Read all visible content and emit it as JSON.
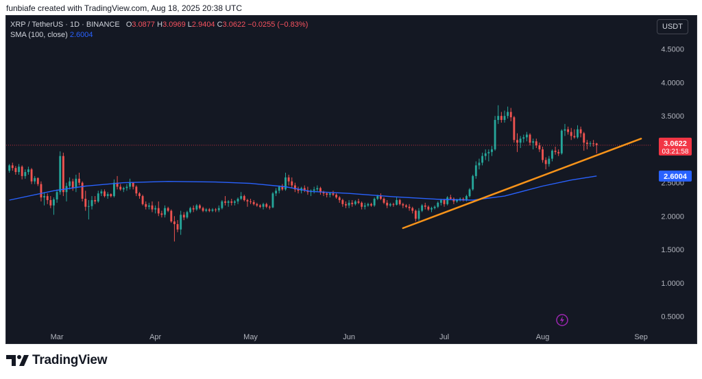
{
  "header": {
    "caption": "funbiafe created with TradingView.com, Aug 18, 2025 20:38 UTC"
  },
  "legend": {
    "symbol": "XRP / TetherUS · 1D · BINANCE",
    "o_label": "O",
    "o_value": "3.0877",
    "h_label": "H",
    "h_value": "3.0969",
    "l_label": "L",
    "l_value": "2.9404",
    "c_label": "C",
    "c_value": "3.0622",
    "change": "−0.0255 (−0.83%)",
    "sma_label": "SMA (100, close)",
    "sma_value": "2.6004"
  },
  "toolbar": {
    "currency_button": "USDT"
  },
  "footer": {
    "brand": "TradingView"
  },
  "colors": {
    "background": "#141823",
    "up": "#26a69a",
    "down": "#ef5350",
    "sma": "#2962ff",
    "trendline": "#f7931a",
    "price_tag": "#f23645"
  },
  "chart_data": {
    "type": "candlestick",
    "series_symbol": "XRP / TetherUS",
    "interval": "1D",
    "exchange": "BINANCE",
    "ylim": [
      0.3,
      5.0
    ],
    "y_ticks": [
      "4.5000",
      "4.0000",
      "3.5000",
      "3.0000",
      "2.5000",
      "2.0000",
      "1.5000",
      "1.0000",
      "0.5000"
    ],
    "x_ticks": [
      "Mar",
      "Apr",
      "May",
      "Jun",
      "Jul",
      "Aug",
      "Sep"
    ],
    "x_tick_dates": [
      "2025-03-01",
      "2025-04-01",
      "2025-05-01",
      "2025-06-01",
      "2025-07-01",
      "2025-08-01",
      "2025-09-01"
    ],
    "x_range": [
      "2025-02-13",
      "2025-09-04"
    ],
    "current_price": "3.0622",
    "countdown": "03:21:58",
    "sma_label_value": "2.6004",
    "candles": [
      [
        "2025-02-14",
        2.68,
        2.78,
        2.65,
        2.76
      ],
      [
        "2025-02-15",
        2.76,
        2.8,
        2.68,
        2.72
      ],
      [
        "2025-02-16",
        2.72,
        2.75,
        2.62,
        2.66
      ],
      [
        "2025-02-17",
        2.66,
        2.78,
        2.62,
        2.74
      ],
      [
        "2025-02-18",
        2.74,
        2.76,
        2.55,
        2.6
      ],
      [
        "2025-02-19",
        2.6,
        2.7,
        2.56,
        2.66
      ],
      [
        "2025-02-20",
        2.66,
        2.74,
        2.62,
        2.7
      ],
      [
        "2025-02-21",
        2.7,
        2.72,
        2.48,
        2.52
      ],
      [
        "2025-02-22",
        2.52,
        2.6,
        2.48,
        2.57
      ],
      [
        "2025-02-23",
        2.57,
        2.58,
        2.45,
        2.48
      ],
      [
        "2025-02-24",
        2.48,
        2.52,
        2.22,
        2.28
      ],
      [
        "2025-02-25",
        2.28,
        2.36,
        2.16,
        2.3
      ],
      [
        "2025-02-26",
        2.3,
        2.34,
        2.18,
        2.24
      ],
      [
        "2025-02-27",
        2.24,
        2.3,
        2.12,
        2.16
      ],
      [
        "2025-02-28",
        2.16,
        2.28,
        2.02,
        2.25
      ],
      [
        "2025-03-01",
        2.25,
        2.4,
        2.2,
        2.36
      ],
      [
        "2025-03-02",
        2.36,
        2.97,
        2.32,
        2.9
      ],
      [
        "2025-03-03",
        2.9,
        2.95,
        2.3,
        2.36
      ],
      [
        "2025-03-04",
        2.36,
        2.5,
        2.22,
        2.45
      ],
      [
        "2025-03-05",
        2.45,
        2.58,
        2.4,
        2.52
      ],
      [
        "2025-03-06",
        2.52,
        2.56,
        2.38,
        2.42
      ],
      [
        "2025-03-07",
        2.42,
        2.62,
        2.36,
        2.56
      ],
      [
        "2025-03-08",
        2.56,
        2.65,
        2.46,
        2.5
      ],
      [
        "2025-03-09",
        2.5,
        2.52,
        2.22,
        2.26
      ],
      [
        "2025-03-10",
        2.26,
        2.38,
        2.08,
        2.14
      ],
      [
        "2025-03-11",
        2.14,
        2.24,
        1.95,
        2.15
      ],
      [
        "2025-03-12",
        2.15,
        2.3,
        2.1,
        2.24
      ],
      [
        "2025-03-13",
        2.24,
        2.3,
        2.18,
        2.22
      ],
      [
        "2025-03-14",
        2.22,
        2.38,
        2.2,
        2.34
      ],
      [
        "2025-03-15",
        2.34,
        2.4,
        2.3,
        2.37
      ],
      [
        "2025-03-16",
        2.37,
        2.4,
        2.28,
        2.3
      ],
      [
        "2025-03-17",
        2.3,
        2.36,
        2.26,
        2.33
      ],
      [
        "2025-03-18",
        2.33,
        2.34,
        2.28,
        2.3
      ],
      [
        "2025-03-19",
        2.3,
        2.55,
        2.28,
        2.5
      ],
      [
        "2025-03-20",
        2.5,
        2.6,
        2.4,
        2.44
      ],
      [
        "2025-03-21",
        2.44,
        2.48,
        2.38,
        2.4
      ],
      [
        "2025-03-22",
        2.4,
        2.44,
        2.36,
        2.42
      ],
      [
        "2025-03-23",
        2.42,
        2.48,
        2.38,
        2.44
      ],
      [
        "2025-03-24",
        2.44,
        2.56,
        2.4,
        2.5
      ],
      [
        "2025-03-25",
        2.5,
        2.5,
        2.4,
        2.44
      ],
      [
        "2025-03-26",
        2.44,
        2.46,
        2.3,
        2.34
      ],
      [
        "2025-03-27",
        2.34,
        2.36,
        2.26,
        2.3
      ],
      [
        "2025-03-28",
        2.3,
        2.32,
        2.16,
        2.18
      ],
      [
        "2025-03-29",
        2.18,
        2.22,
        2.1,
        2.14
      ],
      [
        "2025-03-30",
        2.14,
        2.2,
        2.1,
        2.16
      ],
      [
        "2025-03-31",
        2.16,
        2.22,
        2.06,
        2.1
      ],
      [
        "2025-04-01",
        2.1,
        2.16,
        2.04,
        2.12
      ],
      [
        "2025-04-02",
        2.12,
        2.22,
        2.0,
        2.04
      ],
      [
        "2025-04-03",
        2.04,
        2.08,
        1.98,
        2.02
      ],
      [
        "2025-04-04",
        2.02,
        2.16,
        1.98,
        2.12
      ],
      [
        "2025-04-05",
        2.12,
        2.14,
        2.06,
        2.08
      ],
      [
        "2025-04-06",
        2.08,
        2.1,
        1.9,
        1.92
      ],
      [
        "2025-04-07",
        1.92,
        2.0,
        1.62,
        1.88
      ],
      [
        "2025-04-08",
        1.88,
        1.94,
        1.76,
        1.8
      ],
      [
        "2025-04-09",
        1.8,
        2.08,
        1.72,
        2.02
      ],
      [
        "2025-04-10",
        2.02,
        2.06,
        1.94,
        1.98
      ],
      [
        "2025-04-11",
        1.98,
        2.08,
        1.96,
        2.06
      ],
      [
        "2025-04-12",
        2.06,
        2.14,
        2.04,
        2.12
      ],
      [
        "2025-04-13",
        2.12,
        2.16,
        2.06,
        2.1
      ],
      [
        "2025-04-14",
        2.1,
        2.18,
        2.08,
        2.16
      ],
      [
        "2025-04-15",
        2.16,
        2.18,
        2.1,
        2.12
      ],
      [
        "2025-04-16",
        2.12,
        2.14,
        2.06,
        2.08
      ],
      [
        "2025-04-17",
        2.08,
        2.12,
        2.06,
        2.1
      ],
      [
        "2025-04-18",
        2.1,
        2.12,
        2.06,
        2.08
      ],
      [
        "2025-04-19",
        2.08,
        2.12,
        2.06,
        2.1
      ],
      [
        "2025-04-20",
        2.1,
        2.12,
        2.06,
        2.09
      ],
      [
        "2025-04-21",
        2.09,
        2.16,
        2.06,
        2.12
      ],
      [
        "2025-04-22",
        2.12,
        2.24,
        2.1,
        2.22
      ],
      [
        "2025-04-23",
        2.22,
        2.3,
        2.16,
        2.2
      ],
      [
        "2025-04-24",
        2.2,
        2.24,
        2.14,
        2.22
      ],
      [
        "2025-04-25",
        2.22,
        2.26,
        2.16,
        2.2
      ],
      [
        "2025-04-26",
        2.2,
        2.24,
        2.16,
        2.22
      ],
      [
        "2025-04-27",
        2.22,
        2.28,
        2.18,
        2.26
      ],
      [
        "2025-04-28",
        2.26,
        2.36,
        2.24,
        2.3
      ],
      [
        "2025-04-29",
        2.3,
        2.32,
        2.22,
        2.24
      ],
      [
        "2025-04-30",
        2.24,
        2.26,
        2.14,
        2.22
      ],
      [
        "2025-05-01",
        2.22,
        2.26,
        2.18,
        2.21
      ],
      [
        "2025-05-02",
        2.21,
        2.24,
        2.16,
        2.18
      ],
      [
        "2025-05-03",
        2.18,
        2.2,
        2.14,
        2.16
      ],
      [
        "2025-05-04",
        2.16,
        2.18,
        2.12,
        2.14
      ],
      [
        "2025-05-05",
        2.14,
        2.2,
        2.1,
        2.18
      ],
      [
        "2025-05-06",
        2.18,
        2.2,
        2.12,
        2.14
      ],
      [
        "2025-05-07",
        2.14,
        2.16,
        2.1,
        2.13
      ],
      [
        "2025-05-08",
        2.13,
        2.36,
        2.12,
        2.34
      ],
      [
        "2025-05-09",
        2.34,
        2.42,
        2.3,
        2.38
      ],
      [
        "2025-05-10",
        2.38,
        2.46,
        2.34,
        2.44
      ],
      [
        "2025-05-11",
        2.44,
        2.48,
        2.38,
        2.4
      ],
      [
        "2025-05-12",
        2.4,
        2.65,
        2.38,
        2.58
      ],
      [
        "2025-05-13",
        2.58,
        2.62,
        2.46,
        2.52
      ],
      [
        "2025-05-14",
        2.52,
        2.58,
        2.42,
        2.46
      ],
      [
        "2025-05-15",
        2.46,
        2.5,
        2.36,
        2.4
      ],
      [
        "2025-05-16",
        2.4,
        2.44,
        2.34,
        2.38
      ],
      [
        "2025-05-17",
        2.38,
        2.44,
        2.34,
        2.42
      ],
      [
        "2025-05-18",
        2.42,
        2.46,
        2.36,
        2.38
      ],
      [
        "2025-05-19",
        2.38,
        2.44,
        2.32,
        2.36
      ],
      [
        "2025-05-20",
        2.36,
        2.4,
        2.3,
        2.38
      ],
      [
        "2025-05-21",
        2.38,
        2.44,
        2.34,
        2.4
      ],
      [
        "2025-05-22",
        2.4,
        2.46,
        2.36,
        2.42
      ],
      [
        "2025-05-23",
        2.42,
        2.44,
        2.32,
        2.36
      ],
      [
        "2025-05-24",
        2.36,
        2.38,
        2.3,
        2.34
      ],
      [
        "2025-05-25",
        2.34,
        2.36,
        2.28,
        2.32
      ],
      [
        "2025-05-26",
        2.32,
        2.36,
        2.28,
        2.34
      ],
      [
        "2025-05-27",
        2.34,
        2.38,
        2.3,
        2.32
      ],
      [
        "2025-05-28",
        2.32,
        2.34,
        2.26,
        2.28
      ],
      [
        "2025-05-29",
        2.28,
        2.3,
        2.2,
        2.24
      ],
      [
        "2025-05-30",
        2.24,
        2.26,
        2.14,
        2.18
      ],
      [
        "2025-05-31",
        2.18,
        2.22,
        2.12,
        2.16
      ],
      [
        "2025-06-01",
        2.16,
        2.24,
        2.12,
        2.2
      ],
      [
        "2025-06-02",
        2.2,
        2.24,
        2.14,
        2.18
      ],
      [
        "2025-06-03",
        2.18,
        2.24,
        2.16,
        2.22
      ],
      [
        "2025-06-04",
        2.22,
        2.26,
        2.18,
        2.2
      ],
      [
        "2025-06-05",
        2.2,
        2.22,
        2.1,
        2.14
      ],
      [
        "2025-06-06",
        2.14,
        2.2,
        2.1,
        2.16
      ],
      [
        "2025-06-07",
        2.16,
        2.2,
        2.14,
        2.18
      ],
      [
        "2025-06-08",
        2.18,
        2.2,
        2.14,
        2.16
      ],
      [
        "2025-06-09",
        2.16,
        2.28,
        2.14,
        2.26
      ],
      [
        "2025-06-10",
        2.26,
        2.32,
        2.24,
        2.3
      ],
      [
        "2025-06-11",
        2.3,
        2.34,
        2.24,
        2.26
      ],
      [
        "2025-06-12",
        2.26,
        2.28,
        2.18,
        2.2
      ],
      [
        "2025-06-13",
        2.2,
        2.24,
        2.12,
        2.16
      ],
      [
        "2025-06-14",
        2.16,
        2.2,
        2.14,
        2.18
      ],
      [
        "2025-06-15",
        2.18,
        2.2,
        2.14,
        2.17
      ],
      [
        "2025-06-16",
        2.17,
        2.28,
        2.16,
        2.24
      ],
      [
        "2025-06-17",
        2.24,
        2.26,
        2.16,
        2.18
      ],
      [
        "2025-06-18",
        2.18,
        2.2,
        2.12,
        2.16
      ],
      [
        "2025-06-19",
        2.16,
        2.18,
        2.12,
        2.14
      ],
      [
        "2025-06-20",
        2.14,
        2.18,
        2.08,
        2.12
      ],
      [
        "2025-06-21",
        2.12,
        2.14,
        2.04,
        2.08
      ],
      [
        "2025-06-22",
        2.08,
        2.1,
        1.92,
        1.96
      ],
      [
        "2025-06-23",
        1.96,
        2.12,
        1.93,
        2.08
      ],
      [
        "2025-06-24",
        2.08,
        2.18,
        2.06,
        2.16
      ],
      [
        "2025-06-25",
        2.16,
        2.2,
        2.1,
        2.14
      ],
      [
        "2025-06-26",
        2.14,
        2.16,
        2.08,
        2.1
      ],
      [
        "2025-06-27",
        2.1,
        2.14,
        2.06,
        2.12
      ],
      [
        "2025-06-28",
        2.12,
        2.16,
        2.1,
        2.14
      ],
      [
        "2025-06-29",
        2.14,
        2.22,
        2.12,
        2.2
      ],
      [
        "2025-06-30",
        2.2,
        2.26,
        2.16,
        2.24
      ],
      [
        "2025-07-01",
        2.24,
        2.26,
        2.14,
        2.18
      ],
      [
        "2025-07-02",
        2.18,
        2.3,
        2.16,
        2.28
      ],
      [
        "2025-07-03",
        2.28,
        2.32,
        2.24,
        2.26
      ],
      [
        "2025-07-04",
        2.26,
        2.28,
        2.18,
        2.22
      ],
      [
        "2025-07-05",
        2.22,
        2.26,
        2.2,
        2.24
      ],
      [
        "2025-07-06",
        2.24,
        2.28,
        2.22,
        2.26
      ],
      [
        "2025-07-07",
        2.26,
        2.28,
        2.22,
        2.24
      ],
      [
        "2025-07-08",
        2.24,
        2.32,
        2.22,
        2.3
      ],
      [
        "2025-07-09",
        2.3,
        2.42,
        2.28,
        2.4
      ],
      [
        "2025-07-10",
        2.4,
        2.62,
        2.38,
        2.6
      ],
      [
        "2025-07-11",
        2.6,
        2.82,
        2.56,
        2.76
      ],
      [
        "2025-07-12",
        2.76,
        2.86,
        2.7,
        2.8
      ],
      [
        "2025-07-13",
        2.8,
        2.95,
        2.76,
        2.9
      ],
      [
        "2025-07-14",
        2.9,
        3.0,
        2.84,
        2.94
      ],
      [
        "2025-07-15",
        2.94,
        3.0,
        2.82,
        2.96
      ],
      [
        "2025-07-16",
        2.96,
        3.05,
        2.9,
        3.0
      ],
      [
        "2025-07-17",
        3.0,
        3.5,
        2.98,
        3.44
      ],
      [
        "2025-07-18",
        3.44,
        3.66,
        3.38,
        3.5
      ],
      [
        "2025-07-19",
        3.5,
        3.56,
        3.4,
        3.44
      ],
      [
        "2025-07-20",
        3.44,
        3.58,
        3.4,
        3.5
      ],
      [
        "2025-07-21",
        3.5,
        3.64,
        3.46,
        3.56
      ],
      [
        "2025-07-22",
        3.56,
        3.62,
        3.42,
        3.48
      ],
      [
        "2025-07-23",
        3.48,
        3.5,
        3.1,
        3.14
      ],
      [
        "2025-07-24",
        3.14,
        3.24,
        2.96,
        3.1
      ],
      [
        "2025-07-25",
        3.1,
        3.2,
        3.02,
        3.16
      ],
      [
        "2025-07-26",
        3.16,
        3.22,
        3.1,
        3.18
      ],
      [
        "2025-07-27",
        3.18,
        3.26,
        3.12,
        3.22
      ],
      [
        "2025-07-28",
        3.22,
        3.24,
        3.06,
        3.1
      ],
      [
        "2025-07-29",
        3.1,
        3.16,
        3.0,
        3.12
      ],
      [
        "2025-07-30",
        3.12,
        3.16,
        3.02,
        3.06
      ],
      [
        "2025-07-31",
        3.06,
        3.1,
        2.96,
        3.0
      ],
      [
        "2025-08-01",
        3.0,
        3.04,
        2.8,
        2.84
      ],
      [
        "2025-08-02",
        2.84,
        2.88,
        2.7,
        2.78
      ],
      [
        "2025-08-03",
        2.78,
        2.9,
        2.74,
        2.86
      ],
      [
        "2025-08-04",
        2.86,
        3.0,
        2.82,
        2.98
      ],
      [
        "2025-08-05",
        2.98,
        3.04,
        2.92,
        2.96
      ],
      [
        "2025-08-06",
        2.96,
        3.0,
        2.9,
        2.94
      ],
      [
        "2025-08-07",
        2.94,
        3.3,
        2.92,
        3.28
      ],
      [
        "2025-08-08",
        3.28,
        3.38,
        3.2,
        3.3
      ],
      [
        "2025-08-09",
        3.3,
        3.34,
        3.22,
        3.26
      ],
      [
        "2025-08-10",
        3.26,
        3.32,
        3.14,
        3.2
      ],
      [
        "2025-08-11",
        3.2,
        3.3,
        3.16,
        3.18
      ],
      [
        "2025-08-12",
        3.18,
        3.36,
        3.16,
        3.3
      ],
      [
        "2025-08-13",
        3.3,
        3.34,
        3.18,
        3.24
      ],
      [
        "2025-08-14",
        3.24,
        3.26,
        2.98,
        3.1
      ],
      [
        "2025-08-15",
        3.1,
        3.14,
        3.0,
        3.08
      ],
      [
        "2025-08-16",
        3.08,
        3.12,
        3.04,
        3.09
      ],
      [
        "2025-08-17",
        3.09,
        3.14,
        3.04,
        3.0877
      ],
      [
        "2025-08-18",
        3.0877,
        3.0969,
        2.9404,
        3.0622
      ]
    ],
    "sma": [
      [
        "2025-02-14",
        2.24
      ],
      [
        "2025-02-28",
        2.38
      ],
      [
        "2025-03-10",
        2.45
      ],
      [
        "2025-03-22",
        2.5
      ],
      [
        "2025-04-05",
        2.52
      ],
      [
        "2025-04-20",
        2.51
      ],
      [
        "2025-05-01",
        2.49
      ],
      [
        "2025-05-12",
        2.44
      ],
      [
        "2025-05-20",
        2.37
      ],
      [
        "2025-06-01",
        2.34
      ],
      [
        "2025-06-15",
        2.29
      ],
      [
        "2025-06-30",
        2.25
      ],
      [
        "2025-07-10",
        2.24
      ],
      [
        "2025-07-20",
        2.3
      ],
      [
        "2025-08-01",
        2.45
      ],
      [
        "2025-08-10",
        2.54
      ],
      [
        "2025-08-18",
        2.6004
      ]
    ],
    "trendline": [
      [
        "2025-06-18",
        1.82
      ],
      [
        "2025-09-01",
        3.16
      ]
    ]
  }
}
